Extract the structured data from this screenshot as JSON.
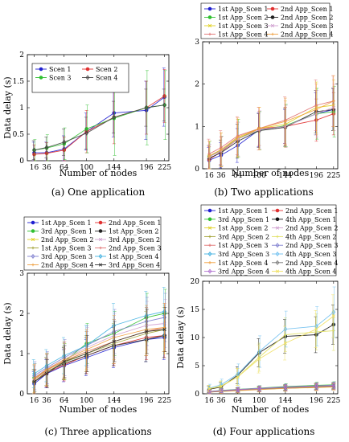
{
  "chart_data": [
    {
      "type": "line",
      "caption": "(a) One application",
      "xlabel": "Number of nodes",
      "ylabel": "Data delay (s)",
      "x": [
        16,
        36,
        64,
        100,
        144,
        196,
        225
      ],
      "xlim": [
        5,
        232
      ],
      "ylim": [
        0,
        2
      ],
      "yticks": [
        0,
        0.5,
        1,
        1.5,
        2
      ],
      "ytick_labels": [
        "0",
        "0.5",
        "1",
        "1.5",
        "2"
      ],
      "legend_position": "inside-top-left",
      "legend_columns": 2,
      "series": [
        {
          "name": "Scen 1",
          "color": "#1f1fd0",
          "marker": "circle",
          "values": [
            0.15,
            0.15,
            0.22,
            0.55,
            0.9,
            0.95,
            1.2
          ],
          "err": [
            0.2,
            0.2,
            0.25,
            0.35,
            0.45,
            0.55,
            0.55
          ]
        },
        {
          "name": "Scen 2",
          "color": "#e03030",
          "marker": "circle",
          "values": [
            0.12,
            0.14,
            0.2,
            0.55,
            0.82,
            1.0,
            1.22
          ],
          "err": [
            0.18,
            0.2,
            0.25,
            0.4,
            0.5,
            0.5,
            0.5
          ]
        },
        {
          "name": "Scen 3",
          "color": "#30c030",
          "marker": "circle",
          "values": [
            0.2,
            0.24,
            0.32,
            0.6,
            0.8,
            1.0,
            1.05
          ],
          "err": [
            0.2,
            0.25,
            0.3,
            0.45,
            0.7,
            0.7,
            0.65
          ]
        },
        {
          "name": "Scen 4",
          "color": "#444444",
          "marker": "diamond",
          "values": [
            0.2,
            0.25,
            0.35,
            0.52,
            0.82,
            1.0,
            1.05
          ],
          "err": [
            0.18,
            0.2,
            0.25,
            0.3,
            0.3,
            0.35,
            0.3
          ]
        }
      ]
    },
    {
      "type": "line",
      "caption": "(b) Two applications",
      "xlabel": "Number of nodes",
      "ylabel": "",
      "x": [
        16,
        36,
        64,
        100,
        144,
        196,
        225
      ],
      "xlim": [
        5,
        232
      ],
      "ylim": [
        0,
        3
      ],
      "yticks": [
        0,
        1,
        2,
        3
      ],
      "ytick_labels": [
        "0",
        "1",
        "2",
        "3"
      ],
      "legend_position": "above",
      "legend_columns": 2,
      "series": [
        {
          "name": "1st App_Scen 1",
          "color": "#1f1fd0",
          "marker": "circle",
          "values": [
            0.2,
            0.32,
            0.55,
            0.92,
            1.0,
            1.3,
            1.4
          ],
          "err": [
            0.3,
            0.3,
            0.4,
            0.4,
            0.4,
            0.5,
            0.5
          ]
        },
        {
          "name": "2nd App_Scen 1",
          "color": "#e03030",
          "marker": "circle",
          "values": [
            0.22,
            0.4,
            0.7,
            0.95,
            1.0,
            1.15,
            1.3
          ],
          "err": [
            0.3,
            0.35,
            0.4,
            0.4,
            0.45,
            0.5,
            0.5
          ]
        },
        {
          "name": "1st App_Scen 2",
          "color": "#30c030",
          "marker": "circle",
          "values": [
            0.3,
            0.42,
            0.72,
            0.9,
            1.02,
            1.3,
            1.35
          ],
          "err": [
            0.35,
            0.35,
            0.45,
            0.45,
            0.5,
            0.6,
            0.6
          ]
        },
        {
          "name": "2nd App_Scen 2",
          "color": "#222222",
          "marker": "circle",
          "values": [
            0.25,
            0.38,
            0.65,
            0.9,
            0.98,
            1.35,
            1.4
          ],
          "err": [
            0.3,
            0.3,
            0.4,
            0.4,
            0.45,
            0.5,
            0.5
          ]
        },
        {
          "name": "1st App_Scen 3",
          "color": "#e0d020",
          "marker": "cross",
          "values": [
            0.3,
            0.45,
            0.72,
            0.95,
            1.05,
            1.45,
            1.5
          ],
          "err": [
            0.35,
            0.4,
            0.45,
            0.5,
            0.55,
            0.6,
            0.6
          ]
        },
        {
          "name": "2nd App_Scen 3",
          "color": "#d0a0d0",
          "marker": "cross",
          "values": [
            0.28,
            0.42,
            0.7,
            0.92,
            1.0,
            1.3,
            1.45
          ],
          "err": [
            0.3,
            0.35,
            0.4,
            0.45,
            0.5,
            0.55,
            0.55
          ]
        },
        {
          "name": "1st App_Scen 4",
          "color": "#e07070",
          "marker": "plus",
          "values": [
            0.35,
            0.5,
            0.78,
            0.95,
            1.15,
            1.5,
            1.6
          ],
          "err": [
            0.35,
            0.4,
            0.45,
            0.5,
            0.55,
            0.6,
            0.6
          ]
        },
        {
          "name": "2nd App_Scen 4",
          "color": "#f0a040",
          "marker": "plus",
          "values": [
            0.3,
            0.45,
            0.75,
            0.95,
            1.12,
            1.4,
            1.6
          ],
          "err": [
            0.35,
            0.4,
            0.45,
            0.5,
            0.55,
            0.6,
            0.6
          ]
        }
      ]
    },
    {
      "type": "line",
      "caption": "(c) Three applications",
      "xlabel": "Number of nodes",
      "ylabel": "Data delay (s)",
      "x": [
        16,
        36,
        64,
        100,
        144,
        196,
        225
      ],
      "xlim": [
        5,
        232
      ],
      "ylim": [
        0,
        3
      ],
      "yticks": [
        0,
        1,
        2,
        3
      ],
      "ytick_labels": [
        "0",
        "1",
        "2",
        "3"
      ],
      "legend_position": "above",
      "legend_columns": 2,
      "series": [
        {
          "name": "1st App_Scen 1",
          "color": "#1f1fd0",
          "marker": "circle",
          "values": [
            0.25,
            0.5,
            0.7,
            0.9,
            1.15,
            1.35,
            1.4
          ],
          "err": [
            0.3,
            0.35,
            0.4,
            0.45,
            0.5,
            0.55,
            0.55
          ]
        },
        {
          "name": "2nd App_Scen 1",
          "color": "#e03030",
          "marker": "circle",
          "values": [
            0.3,
            0.52,
            0.72,
            0.95,
            1.2,
            1.4,
            1.45
          ],
          "err": [
            0.3,
            0.35,
            0.4,
            0.45,
            0.5,
            0.55,
            0.55
          ]
        },
        {
          "name": "3rd App_Scen 1",
          "color": "#30c030",
          "marker": "circle",
          "values": [
            0.4,
            0.6,
            0.8,
            1.25,
            1.5,
            1.9,
            2.0
          ],
          "err": [
            0.35,
            0.4,
            0.45,
            0.5,
            0.55,
            0.6,
            0.6
          ]
        },
        {
          "name": "1st App_Scen 2",
          "color": "#222222",
          "marker": "circle",
          "values": [
            0.3,
            0.55,
            0.75,
            0.95,
            1.2,
            1.35,
            1.45
          ],
          "err": [
            0.3,
            0.35,
            0.4,
            0.45,
            0.5,
            0.55,
            0.55
          ]
        },
        {
          "name": "2nd App_Scen 2",
          "color": "#e0d020",
          "marker": "cross",
          "values": [
            0.35,
            0.6,
            0.8,
            1.05,
            1.3,
            1.55,
            1.6
          ],
          "err": [
            0.35,
            0.4,
            0.45,
            0.5,
            0.55,
            0.6,
            0.6
          ]
        },
        {
          "name": "3rd App_Scen 2",
          "color": "#d0a0d0",
          "marker": "cross",
          "values": [
            0.4,
            0.62,
            0.85,
            1.15,
            1.45,
            1.7,
            1.75
          ],
          "err": [
            0.35,
            0.4,
            0.45,
            0.5,
            0.55,
            0.6,
            0.6
          ]
        },
        {
          "name": "1st App_Scen 3",
          "color": "#a0a030",
          "marker": "plus",
          "values": [
            0.3,
            0.55,
            0.78,
            1.0,
            1.25,
            1.5,
            1.6
          ],
          "err": [
            0.3,
            0.35,
            0.4,
            0.45,
            0.5,
            0.55,
            0.55
          ]
        },
        {
          "name": "2nd App_Scen 3",
          "color": "#e07070",
          "marker": "plus",
          "values": [
            0.35,
            0.58,
            0.82,
            1.05,
            1.3,
            1.55,
            1.65
          ],
          "err": [
            0.35,
            0.4,
            0.45,
            0.5,
            0.55,
            0.6,
            0.6
          ]
        },
        {
          "name": "3rd App_Scen 3",
          "color": "#8080d0",
          "marker": "diamond",
          "values": [
            0.45,
            0.65,
            0.9,
            1.2,
            1.55,
            1.8,
            1.9
          ],
          "err": [
            0.35,
            0.4,
            0.45,
            0.5,
            0.55,
            0.6,
            0.6
          ]
        },
        {
          "name": "1st App_Scen 4",
          "color": "#40b0e0",
          "marker": "diamond",
          "values": [
            0.5,
            0.7,
            0.95,
            1.2,
            1.7,
            1.95,
            2.05
          ],
          "err": [
            0.35,
            0.4,
            0.45,
            0.5,
            0.55,
            0.6,
            0.6
          ]
        },
        {
          "name": "2nd App_Scen 4",
          "color": "#f0a040",
          "marker": "plus",
          "values": [
            0.38,
            0.6,
            0.85,
            1.1,
            1.4,
            1.6,
            1.65
          ],
          "err": [
            0.35,
            0.4,
            0.45,
            0.5,
            0.55,
            0.6,
            0.6
          ]
        },
        {
          "name": "3rd App_Scen 4",
          "color": "#333333",
          "marker": "cross",
          "values": [
            0.3,
            0.5,
            0.8,
            1.0,
            1.3,
            1.55,
            1.6
          ],
          "err": [
            0.3,
            0.35,
            0.4,
            0.45,
            0.5,
            0.55,
            0.55
          ]
        }
      ]
    },
    {
      "type": "line",
      "caption": "(d) Four applications",
      "xlabel": "Number of nodes",
      "ylabel": "Data delay (s)",
      "x": [
        16,
        36,
        64,
        100,
        144,
        196,
        225
      ],
      "xlim": [
        5,
        232
      ],
      "ylim": [
        0,
        20
      ],
      "yticks": [
        0,
        5,
        10,
        15,
        20
      ],
      "ytick_labels": [
        "0",
        "5",
        "10",
        "15",
        "20"
      ],
      "legend_position": "above",
      "legend_columns": 2,
      "series": [
        {
          "name": "1st App_Scen 1",
          "color": "#1f1fd0",
          "marker": "circle",
          "values": [
            0.3,
            0.45,
            0.6,
            0.8,
            1.0,
            1.15,
            1.25
          ],
          "err": [
            0.3,
            0.35,
            0.4,
            0.45,
            0.5,
            0.55,
            0.55
          ]
        },
        {
          "name": "2nd App_Scen 1",
          "color": "#e03030",
          "marker": "circle",
          "values": [
            0.35,
            0.5,
            0.7,
            0.9,
            1.1,
            1.3,
            1.4
          ],
          "err": [
            0.3,
            0.35,
            0.4,
            0.45,
            0.5,
            0.55,
            0.55
          ]
        },
        {
          "name": "3rd App_Scen 1",
          "color": "#30c030",
          "marker": "circle",
          "values": [
            0.4,
            0.6,
            0.8,
            1.0,
            1.3,
            1.5,
            1.6
          ],
          "err": [
            0.3,
            0.35,
            0.4,
            0.45,
            0.5,
            0.55,
            0.55
          ]
        },
        {
          "name": "4th App_Scen 1",
          "color": "#111111",
          "marker": "circle",
          "values": [
            0.8,
            1.2,
            3.3,
            7.3,
            10.2,
            10.5,
            12.3
          ],
          "err": [
            0.6,
            0.8,
            1.5,
            2.5,
            3.0,
            3.2,
            3.5
          ]
        },
        {
          "name": "1st App_Scen 2",
          "color": "#e0d020",
          "marker": "cross",
          "values": [
            0.3,
            0.4,
            0.55,
            0.75,
            0.95,
            1.1,
            1.2
          ],
          "err": [
            0.3,
            0.35,
            0.4,
            0.45,
            0.5,
            0.55,
            0.55
          ]
        },
        {
          "name": "2nd App_Scen 2",
          "color": "#d0a0d0",
          "marker": "cross",
          "values": [
            0.35,
            0.45,
            0.6,
            0.8,
            1.0,
            1.2,
            1.3
          ],
          "err": [
            0.3,
            0.35,
            0.4,
            0.45,
            0.5,
            0.55,
            0.55
          ]
        },
        {
          "name": "3rd App_Scen 2",
          "color": "#a0a030",
          "marker": "plus",
          "values": [
            0.4,
            0.55,
            0.7,
            0.9,
            1.15,
            1.35,
            1.45
          ],
          "err": [
            0.3,
            0.35,
            0.4,
            0.45,
            0.5,
            0.55,
            0.55
          ]
        },
        {
          "name": "4th App_Scen 2",
          "color": "#e0e060",
          "marker": "plus",
          "values": [
            0.9,
            1.4,
            3.0,
            6.5,
            10.5,
            11.0,
            11.2
          ],
          "err": [
            0.6,
            0.9,
            1.5,
            2.5,
            3.0,
            3.2,
            3.5
          ]
        },
        {
          "name": "1st App_Scen 3",
          "color": "#e07070",
          "marker": "plus",
          "values": [
            0.3,
            0.42,
            0.6,
            0.78,
            1.0,
            1.15,
            1.25
          ],
          "err": [
            0.3,
            0.35,
            0.4,
            0.45,
            0.5,
            0.55,
            0.55
          ]
        },
        {
          "name": "2nd App_Scen 3",
          "color": "#8080d0",
          "marker": "diamond",
          "values": [
            0.35,
            0.5,
            0.65,
            0.85,
            1.05,
            1.25,
            1.35
          ],
          "err": [
            0.3,
            0.35,
            0.4,
            0.45,
            0.5,
            0.55,
            0.55
          ]
        },
        {
          "name": "3rd App_Scen 3",
          "color": "#40b0e0",
          "marker": "diamond",
          "values": [
            0.4,
            0.55,
            0.75,
            0.95,
            1.2,
            1.4,
            1.5
          ],
          "err": [
            0.3,
            0.35,
            0.4,
            0.45,
            0.5,
            0.55,
            0.55
          ]
        },
        {
          "name": "4th App_Scen 3",
          "color": "#70c0f0",
          "marker": "diamond",
          "values": [
            1.0,
            1.6,
            3.5,
            7.5,
            11.5,
            12.0,
            14.5
          ],
          "err": [
            0.7,
            1.0,
            1.8,
            2.8,
            3.2,
            3.5,
            4.5
          ]
        },
        {
          "name": "1st App_Scen 4",
          "color": "#f0a040",
          "marker": "plus",
          "values": [
            0.3,
            0.45,
            0.62,
            0.8,
            1.0,
            1.2,
            1.3
          ],
          "err": [
            0.3,
            0.35,
            0.4,
            0.45,
            0.5,
            0.55,
            0.55
          ]
        },
        {
          "name": "2nd App_Scen 4",
          "color": "#777777",
          "marker": "diamond",
          "values": [
            0.35,
            0.5,
            0.7,
            0.9,
            1.1,
            1.3,
            1.4
          ],
          "err": [
            0.3,
            0.35,
            0.4,
            0.45,
            0.5,
            0.55,
            0.55
          ]
        },
        {
          "name": "3rd App_Scen 4",
          "color": "#b070d0",
          "marker": "diamond",
          "values": [
            0.4,
            0.55,
            0.75,
            0.95,
            1.2,
            1.4,
            1.5
          ],
          "err": [
            0.3,
            0.35,
            0.4,
            0.45,
            0.5,
            0.55,
            0.55
          ]
        },
        {
          "name": "4th App_Scen 4",
          "color": "#f0e060",
          "marker": "cross",
          "values": [
            0.9,
            1.3,
            3.0,
            6.2,
            9.0,
            11.5,
            13.8
          ],
          "err": [
            0.6,
            0.9,
            1.5,
            2.5,
            3.0,
            3.3,
            3.8
          ]
        }
      ]
    }
  ]
}
